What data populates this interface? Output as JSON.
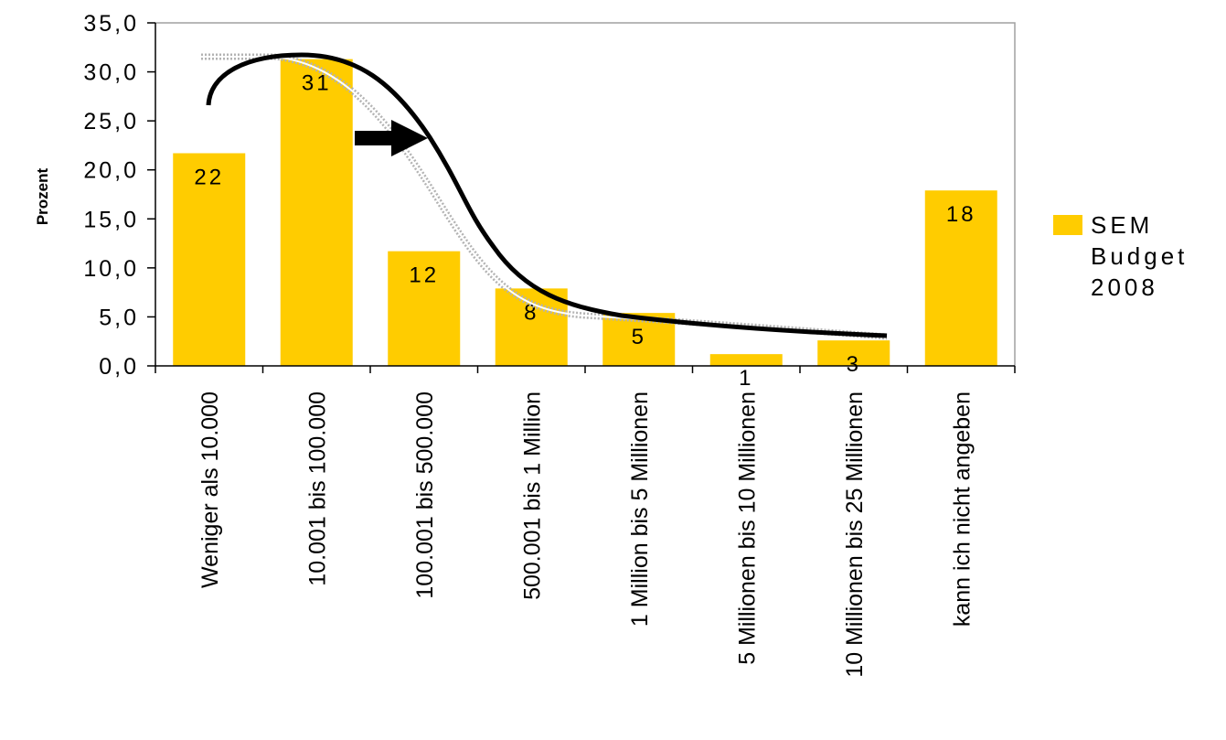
{
  "chart_data": {
    "type": "bar",
    "ylabel": "Prozent",
    "ylim": [
      0,
      35
    ],
    "ytick_labels": [
      "0,0",
      "5,0",
      "10,0",
      "15,0",
      "20,0",
      "25,0",
      "30,0",
      "35,0"
    ],
    "ytick_values": [
      0,
      5,
      10,
      15,
      20,
      25,
      30,
      35
    ],
    "categories": [
      "Weniger als 10.000",
      "10.001 bis 100.000",
      "100.001 bis  500.000",
      "500.001 bis  1 Million",
      "1 Million bis  5 Millionen",
      "5 Millionen bis  10 Millionen",
      "10 Millionen bis  25 Millionen",
      "kann ich nicht angeben"
    ],
    "series": [
      {
        "name": "SEM Budget 2008",
        "values": [
          21.7,
          31.3,
          11.7,
          7.9,
          5.4,
          1.2,
          2.6,
          17.9
        ],
        "data_labels": [
          "22",
          "31",
          "12",
          "8",
          "5",
          "1",
          "3",
          "18"
        ]
      }
    ],
    "legend": {
      "position": "right",
      "lines": [
        "SEM",
        "Budget",
        "2008"
      ]
    },
    "grid": false,
    "colors": {
      "bar": "#FFCC00",
      "axis": "#000000",
      "plot_border": "#a0a0a0",
      "curve": "#000000",
      "gray_curve": "#b3b3b3"
    }
  }
}
